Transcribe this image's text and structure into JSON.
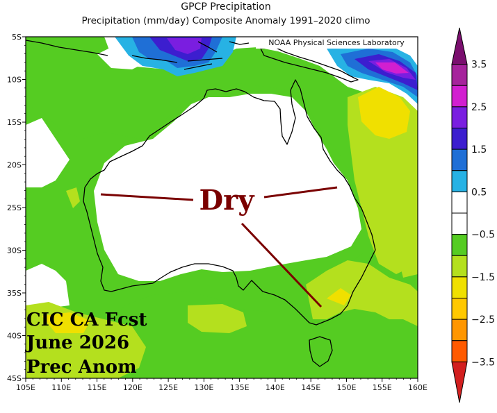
{
  "title": "GPCP Precipitation",
  "subtitle": "Precipitation (mm/day) Composite Anomaly 1991–2020 climo",
  "credit": "NOAA Physical Sciences Laboratory",
  "overlay": {
    "dry_label": "Dry",
    "forecast_lines": [
      "CIC CA Fcst",
      "June 2026",
      "Prec Anom"
    ]
  },
  "axes": {
    "lat_ticks": [
      "5S",
      "10S",
      "15S",
      "20S",
      "25S",
      "30S",
      "35S",
      "40S",
      "45S"
    ],
    "lon_ticks": [
      "105E",
      "110E",
      "115E",
      "120E",
      "125E",
      "130E",
      "135E",
      "140E",
      "145E",
      "150E",
      "155E",
      "160E"
    ],
    "lon_range": [
      105,
      160
    ],
    "lat_range": [
      -45,
      -5
    ]
  },
  "colorbar": {
    "labels": [
      "3.5",
      "2.5",
      "1.5",
      "0.5",
      "−0.5",
      "−1.5",
      "−2.5",
      "−3.5"
    ],
    "colors": [
      "#7a0f6e",
      "#a6239c",
      "#d21fd0",
      "#7a1ee0",
      "#3c1ecf",
      "#1f6fd6",
      "#27b2e4",
      "#ffffff",
      "#ffffff",
      "#55cc22",
      "#b4e01e",
      "#f0e000",
      "#ffc800",
      "#ff9600",
      "#ff5a00",
      "#d21f1f"
    ]
  }
}
